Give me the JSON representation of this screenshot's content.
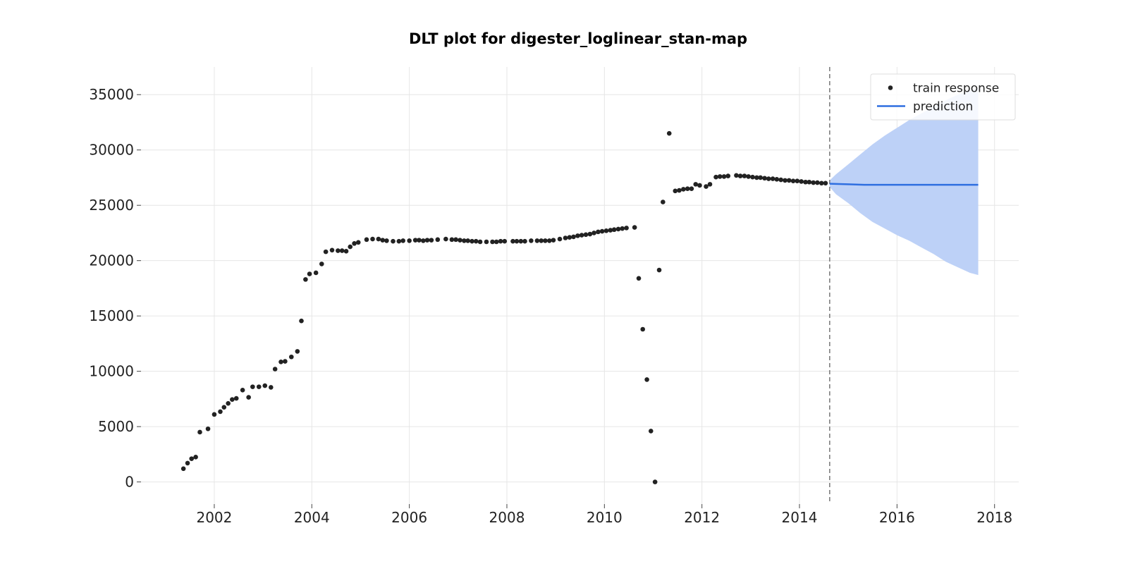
{
  "chart_data": {
    "type": "scatter",
    "title": "DLT plot for digester_loglinear_stan-map",
    "xlabel": "",
    "ylabel": "",
    "xlim": [
      "2000-07-01",
      "2018-07-01"
    ],
    "ylim": [
      -2000,
      37500
    ],
    "x_ticks": [
      "2002",
      "2004",
      "2006",
      "2008",
      "2010",
      "2012",
      "2014",
      "2016",
      "2018"
    ],
    "y_ticks": [
      "0",
      "5000",
      "10000",
      "15000",
      "20000",
      "25000",
      "30000",
      "35000"
    ],
    "grid": true,
    "legend_position": "top-right",
    "train_end_date": "2014-08-15",
    "colors": {
      "train": "#222222",
      "prediction": "#2f6fe0",
      "interval": "#bdd1f7",
      "split_line": "#777777"
    },
    "series": [
      {
        "name": "train response",
        "kind": "scatter",
        "points": [
          [
            "2001-05-15",
            1200
          ],
          [
            "2001-06-15",
            1700
          ],
          [
            "2001-07-15",
            2100
          ],
          [
            "2001-08-15",
            2250
          ],
          [
            "2001-09-15",
            4500
          ],
          [
            "2001-11-15",
            4800
          ],
          [
            "2002-01-01",
            6100
          ],
          [
            "2002-02-15",
            6350
          ],
          [
            "2002-03-15",
            6750
          ],
          [
            "2002-04-15",
            7100
          ],
          [
            "2002-05-15",
            7450
          ],
          [
            "2002-06-15",
            7550
          ],
          [
            "2002-08-01",
            8300
          ],
          [
            "2002-09-15",
            7650
          ],
          [
            "2002-10-15",
            8600
          ],
          [
            "2002-12-01",
            8600
          ],
          [
            "2003-01-15",
            8700
          ],
          [
            "2003-03-01",
            8550
          ],
          [
            "2003-04-01",
            10200
          ],
          [
            "2003-05-15",
            10850
          ],
          [
            "2003-06-15",
            10900
          ],
          [
            "2003-08-01",
            11300
          ],
          [
            "2003-09-15",
            11800
          ],
          [
            "2003-10-15",
            14550
          ],
          [
            "2003-11-15",
            18300
          ],
          [
            "2003-12-15",
            18800
          ],
          [
            "2004-02-01",
            18900
          ],
          [
            "2004-03-15",
            19700
          ],
          [
            "2004-04-15",
            20800
          ],
          [
            "2004-06-01",
            20950
          ],
          [
            "2004-07-15",
            20900
          ],
          [
            "2004-08-15",
            20900
          ],
          [
            "2004-09-15",
            20850
          ],
          [
            "2004-10-15",
            21250
          ],
          [
            "2004-11-15",
            21550
          ],
          [
            "2004-12-15",
            21650
          ],
          [
            "2005-02-15",
            21900
          ],
          [
            "2005-04-01",
            21950
          ],
          [
            "2005-05-15",
            21950
          ],
          [
            "2005-06-15",
            21850
          ],
          [
            "2005-07-15",
            21800
          ],
          [
            "2005-09-01",
            21750
          ],
          [
            "2005-10-15",
            21750
          ],
          [
            "2005-11-15",
            21800
          ],
          [
            "2006-01-01",
            21800
          ],
          [
            "2006-02-15",
            21850
          ],
          [
            "2006-03-15",
            21850
          ],
          [
            "2006-04-15",
            21800
          ],
          [
            "2006-05-15",
            21850
          ],
          [
            "2006-06-15",
            21850
          ],
          [
            "2006-08-01",
            21900
          ],
          [
            "2006-10-01",
            21950
          ],
          [
            "2006-11-15",
            21900
          ],
          [
            "2006-12-15",
            21900
          ],
          [
            "2007-01-15",
            21850
          ],
          [
            "2007-02-15",
            21800
          ],
          [
            "2007-03-15",
            21800
          ],
          [
            "2007-04-15",
            21750
          ],
          [
            "2007-05-15",
            21750
          ],
          [
            "2007-06-15",
            21700
          ],
          [
            "2007-08-01",
            21700
          ],
          [
            "2007-09-15",
            21700
          ],
          [
            "2007-10-15",
            21700
          ],
          [
            "2007-11-15",
            21750
          ],
          [
            "2007-12-15",
            21750
          ],
          [
            "2008-02-15",
            21750
          ],
          [
            "2008-03-15",
            21750
          ],
          [
            "2008-04-15",
            21750
          ],
          [
            "2008-05-15",
            21750
          ],
          [
            "2008-07-01",
            21800
          ],
          [
            "2008-08-15",
            21800
          ],
          [
            "2008-09-15",
            21800
          ],
          [
            "2008-10-15",
            21800
          ],
          [
            "2008-11-15",
            21800
          ],
          [
            "2008-12-15",
            21850
          ],
          [
            "2009-02-01",
            21950
          ],
          [
            "2009-03-15",
            22050
          ],
          [
            "2009-04-15",
            22100
          ],
          [
            "2009-05-15",
            22150
          ],
          [
            "2009-06-15",
            22250
          ],
          [
            "2009-07-15",
            22300
          ],
          [
            "2009-08-15",
            22350
          ],
          [
            "2009-09-15",
            22400
          ],
          [
            "2009-10-15",
            22500
          ],
          [
            "2009-11-15",
            22600
          ],
          [
            "2009-12-15",
            22650
          ],
          [
            "2010-01-15",
            22700
          ],
          [
            "2010-02-15",
            22750
          ],
          [
            "2010-03-15",
            22800
          ],
          [
            "2010-04-15",
            22850
          ],
          [
            "2010-05-15",
            22900
          ],
          [
            "2010-06-15",
            22950
          ],
          [
            "2010-08-15",
            23000
          ],
          [
            "2010-09-15",
            18400
          ],
          [
            "2010-10-15",
            13800
          ],
          [
            "2010-11-15",
            9250
          ],
          [
            "2010-12-15",
            4600
          ],
          [
            "2011-01-15",
            0
          ],
          [
            "2011-02-15",
            19150
          ],
          [
            "2011-03-15",
            25300
          ],
          [
            "2011-05-01",
            31500
          ],
          [
            "2011-06-15",
            26300
          ],
          [
            "2011-07-15",
            26350
          ],
          [
            "2011-08-15",
            26450
          ],
          [
            "2011-09-15",
            26500
          ],
          [
            "2011-10-15",
            26500
          ],
          [
            "2011-11-15",
            26900
          ],
          [
            "2011-12-15",
            26800
          ],
          [
            "2012-02-01",
            26700
          ],
          [
            "2012-03-01",
            26900
          ],
          [
            "2012-04-15",
            27550
          ],
          [
            "2012-05-15",
            27600
          ],
          [
            "2012-06-15",
            27600
          ],
          [
            "2012-07-15",
            27650
          ],
          [
            "2012-09-15",
            27700
          ],
          [
            "2012-10-15",
            27650
          ],
          [
            "2012-11-15",
            27650
          ],
          [
            "2012-12-15",
            27600
          ],
          [
            "2013-01-15",
            27550
          ],
          [
            "2013-02-15",
            27500
          ],
          [
            "2013-03-15",
            27500
          ],
          [
            "2013-04-15",
            27450
          ],
          [
            "2013-05-15",
            27400
          ],
          [
            "2013-06-15",
            27400
          ],
          [
            "2013-07-15",
            27350
          ],
          [
            "2013-08-15",
            27300
          ],
          [
            "2013-09-15",
            27250
          ],
          [
            "2013-10-15",
            27250
          ],
          [
            "2013-11-15",
            27200
          ],
          [
            "2013-12-15",
            27200
          ],
          [
            "2014-01-15",
            27150
          ],
          [
            "2014-02-15",
            27100
          ],
          [
            "2014-03-15",
            27100
          ],
          [
            "2014-04-15",
            27050
          ],
          [
            "2014-05-15",
            27050
          ],
          [
            "2014-06-15",
            27000
          ],
          [
            "2014-07-15",
            27000
          ]
        ]
      },
      {
        "name": "prediction",
        "kind": "line",
        "points": [
          [
            "2014-08-15",
            26950
          ],
          [
            "2015-01-01",
            26900
          ],
          [
            "2015-05-01",
            26850
          ],
          [
            "2015-09-01",
            26850
          ],
          [
            "2016-01-01",
            26850
          ],
          [
            "2016-05-01",
            26850
          ],
          [
            "2016-09-01",
            26850
          ],
          [
            "2017-01-01",
            26850
          ],
          [
            "2017-05-01",
            26850
          ],
          [
            "2017-09-01",
            26850
          ]
        ]
      },
      {
        "kind": "band",
        "points": [
          [
            "2014-08-15",
            26650,
            27250
          ],
          [
            "2014-10-01",
            26000,
            27800
          ],
          [
            "2015-01-01",
            25200,
            28700
          ],
          [
            "2015-04-01",
            24300,
            29600
          ],
          [
            "2015-07-01",
            23500,
            30500
          ],
          [
            "2015-10-01",
            22900,
            31300
          ],
          [
            "2016-01-01",
            22300,
            32000
          ],
          [
            "2016-04-01",
            21800,
            32700
          ],
          [
            "2016-07-01",
            21200,
            33300
          ],
          [
            "2016-10-01",
            20600,
            33900
          ],
          [
            "2017-01-01",
            19900,
            34500
          ],
          [
            "2017-04-01",
            19400,
            35000
          ],
          [
            "2017-07-01",
            18900,
            35400
          ],
          [
            "2017-09-01",
            18700,
            35600
          ]
        ]
      }
    ]
  }
}
